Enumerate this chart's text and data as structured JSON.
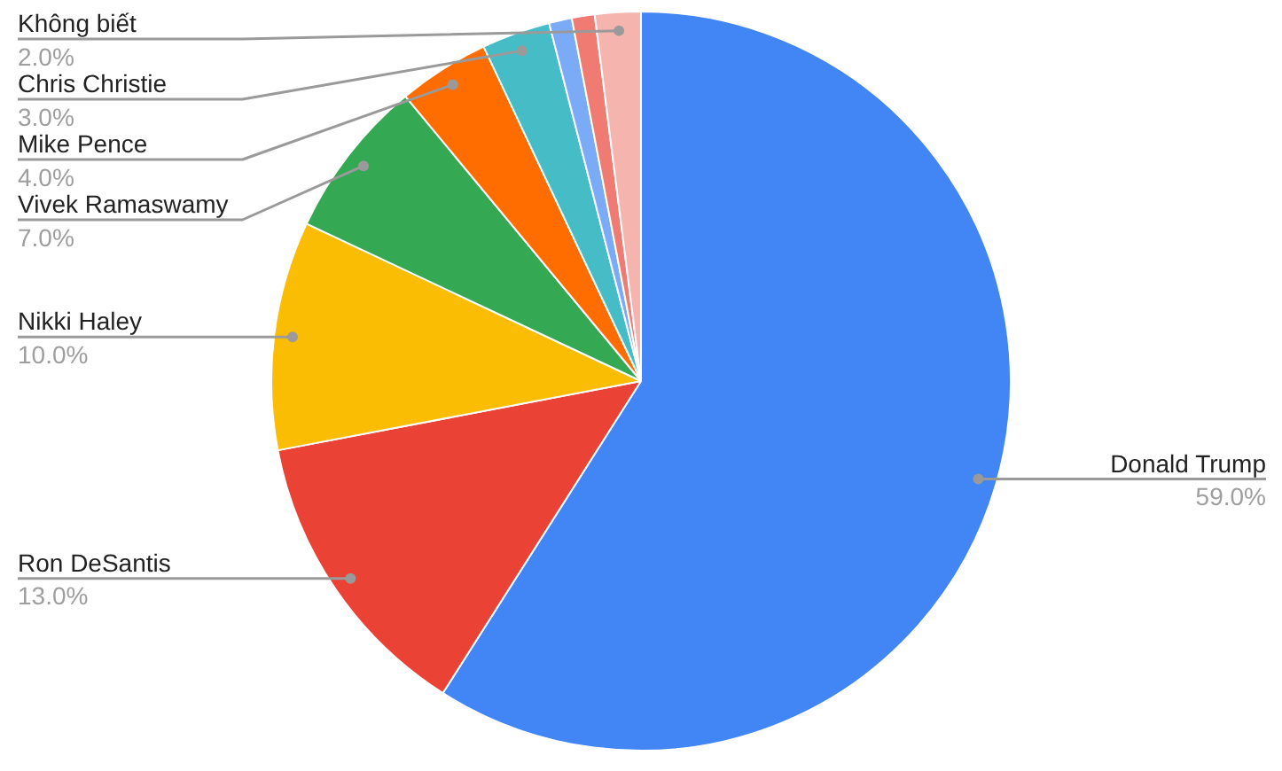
{
  "chart_data": {
    "type": "pie",
    "categories": [
      "Donald Trump",
      "Ron DeSantis",
      "Nikki Haley",
      "Vivek Ramaswamy",
      "Mike Pence",
      "Chris Christie",
      null,
      null,
      "Không biết"
    ],
    "values": [
      59,
      13,
      10,
      7,
      4,
      3,
      1,
      1,
      2
    ],
    "colors": [
      "#4285f4",
      "#ea4335",
      "#fbbc04",
      "#34a853",
      "#ff6d01",
      "#46bdc6",
      "#7baaf7",
      "#f07b72",
      "#f6b4ae"
    ],
    "value_labels": [
      "59.0%",
      "13.0%",
      "10.0%",
      "7.0%",
      "4.0%",
      "3.0%",
      null,
      null,
      "2.0%"
    ],
    "legend": false
  }
}
